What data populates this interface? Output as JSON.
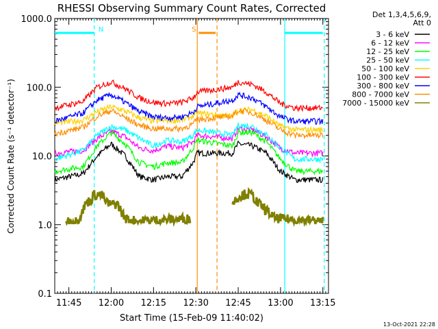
{
  "chart_data": {
    "type": "line",
    "title": "RHESSI Observing Summary Count Rates, Corrected",
    "xlabel": "Start Time (15-Feb-09 11:40:02)",
    "ylabel": "Corrected Count Rate (s⁻¹ detector⁻¹)",
    "yscale": "log",
    "ylim": [
      0.1,
      1000
    ],
    "xlim_minutes_after_start": [
      0,
      97
    ],
    "x_unit": "minutes after 11:40:02",
    "x_ticks": [
      {
        "label": "11:45",
        "minutes": 5
      },
      {
        "label": "12:00",
        "minutes": 20
      },
      {
        "label": "12:15",
        "minutes": 35
      },
      {
        "label": "12:30",
        "minutes": 50
      },
      {
        "label": "12:45",
        "minutes": 65
      },
      {
        "label": "13:00",
        "minutes": 80
      },
      {
        "label": "13:15",
        "minutes": 95
      }
    ],
    "y_ticks": [
      {
        "label": "0.1",
        "value": 0.1
      },
      {
        "label": "1.0",
        "value": 1
      },
      {
        "label": "10.0",
        "value": 10
      },
      {
        "label": "100.0",
        "value": 100
      },
      {
        "label": "1000.0",
        "value": 1000
      }
    ],
    "legend_header": [
      "Det 1,3,4,5,6,9,",
      "Att 0"
    ],
    "legend_position": "right",
    "series": [
      {
        "name": "3 - 6 keV",
        "color": "#000000",
        "x": [
          0,
          10,
          15,
          20,
          25,
          30,
          35,
          40,
          45,
          49,
          50.5,
          63,
          65,
          70,
          75,
          80,
          85,
          95
        ],
        "y": [
          4.5,
          5.5,
          10,
          15,
          10,
          5,
          4.5,
          5,
          5,
          8,
          11,
          11,
          15,
          14,
          11,
          6,
          4.5,
          4.5
        ]
      },
      {
        "name": "6 - 12 keV",
        "color": "#ff00ff",
        "x": [
          0,
          10,
          15,
          20,
          25,
          30,
          35,
          40,
          45,
          49,
          50.5,
          63,
          65,
          70,
          75,
          80,
          85,
          95
        ],
        "y": [
          11,
          12,
          18,
          23,
          19,
          13,
          12,
          14,
          13,
          16,
          20,
          18,
          25,
          24,
          19,
          13,
          11,
          11
        ]
      },
      {
        "name": "12 - 25 keV",
        "color": "#00ff00",
        "x": [
          0,
          10,
          15,
          20,
          25,
          30,
          35,
          40,
          45,
          49,
          50.5,
          63,
          65,
          70,
          75,
          80,
          85,
          95
        ],
        "y": [
          6,
          7,
          14,
          22,
          15,
          8,
          7,
          8,
          8,
          13,
          17,
          14,
          22,
          22,
          16,
          9,
          6,
          6
        ]
      },
      {
        "name": "25 - 50 keV",
        "color": "#00ffff",
        "x": [
          0,
          10,
          15,
          20,
          25,
          30,
          35,
          40,
          45,
          49,
          50.5,
          63,
          65,
          70,
          75,
          80,
          85,
          95
        ],
        "y": [
          9,
          12,
          20,
          27,
          24,
          18,
          14,
          17,
          16,
          20,
          24,
          20,
          28,
          27,
          20,
          13,
          9,
          9
        ]
      },
      {
        "name": "50 - 100 keV",
        "color": "#ffd000",
        "x": [
          0,
          10,
          15,
          20,
          25,
          30,
          35,
          40,
          45,
          49,
          50.5,
          63,
          65,
          70,
          75,
          80,
          85,
          95
        ],
        "y": [
          30,
          33,
          44,
          52,
          45,
          36,
          32,
          33,
          33,
          38,
          42,
          38,
          46,
          47,
          38,
          27,
          24,
          24
        ]
      },
      {
        "name": "100 - 300 keV",
        "color": "#ff0000",
        "x": [
          0,
          10,
          15,
          20,
          25,
          30,
          35,
          40,
          45,
          49,
          50.5,
          63,
          65,
          70,
          75,
          80,
          85,
          95
        ],
        "y": [
          50,
          62,
          100,
          120,
          95,
          70,
          60,
          58,
          60,
          70,
          85,
          100,
          120,
          110,
          85,
          58,
          50,
          50
        ]
      },
      {
        "name": "300 - 800 keV",
        "color": "#0000ff",
        "x": [
          0,
          10,
          15,
          20,
          25,
          30,
          35,
          40,
          45,
          49,
          50.5,
          63,
          65,
          70,
          75,
          80,
          85,
          95
        ],
        "y": [
          32,
          42,
          65,
          78,
          60,
          44,
          37,
          36,
          37,
          43,
          52,
          65,
          78,
          70,
          52,
          37,
          32,
          32
        ]
      },
      {
        "name": "800 - 7000 keV",
        "color": "#ff8c00",
        "x": [
          0,
          10,
          15,
          20,
          25,
          30,
          35,
          40,
          45,
          49,
          50.5,
          63,
          65,
          70,
          75,
          80,
          85,
          95
        ],
        "y": [
          21,
          26,
          38,
          46,
          36,
          28,
          25,
          25,
          25,
          29,
          34,
          38,
          46,
          43,
          33,
          24,
          20,
          20
        ]
      },
      {
        "name": "7000 - 15000 keV",
        "color": "#808000",
        "x": [
          4,
          8,
          10,
          11,
          13,
          14,
          17,
          18,
          20,
          22,
          23,
          25,
          29,
          48,
          63,
          65,
          68,
          70,
          71,
          72,
          75,
          78,
          95
        ],
        "y": [
          1.1,
          1.1,
          1.6,
          2,
          2.3,
          2.7,
          2.6,
          2.1,
          1.9,
          2,
          1.7,
          1.2,
          1.1,
          1.2,
          2,
          2.5,
          2.8,
          2.6,
          2.3,
          2,
          1.6,
          1.2,
          1.1
        ]
      }
    ],
    "flags": [
      {
        "label": "N",
        "color": "#00ffff",
        "start": 0,
        "end": 14
      },
      {
        "label": "S",
        "color": "#ff8c00",
        "start": 51,
        "end": 57
      },
      {
        "label": "",
        "color": "#00ffff",
        "start": 81.5,
        "end": 95
      }
    ],
    "vertical_lines": [
      {
        "x": 14,
        "color": "#00ffff",
        "style": "dashed"
      },
      {
        "x": 81.5,
        "color": "#00ffff",
        "style": "solid"
      },
      {
        "x": 95.5,
        "color": "#00ffff",
        "style": "dashed"
      },
      {
        "x": 50.5,
        "color": "#ff8c00",
        "style": "solid"
      },
      {
        "x": 57.5,
        "color": "#ff8c00",
        "style": "dashed"
      }
    ],
    "footer_timestamp": "13-Oct-2021 22:28",
    "grid": false
  }
}
